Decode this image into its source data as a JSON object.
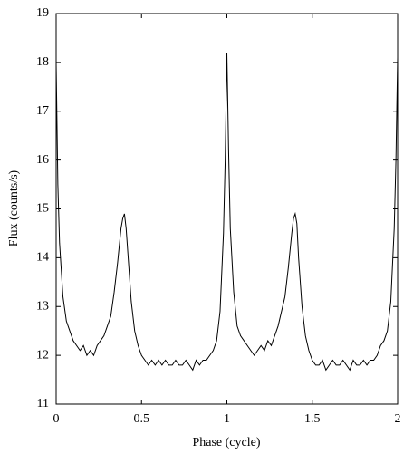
{
  "chart_data": {
    "type": "line",
    "xlabel": "Phase (cycle)",
    "ylabel": "Flux (counts/s)",
    "color": "#000000",
    "x": [
      0,
      0.01,
      0.02,
      0.04,
      0.06,
      0.08,
      0.1,
      0.12,
      0.14,
      0.16,
      0.18,
      0.2,
      0.22,
      0.24,
      0.26,
      0.28,
      0.3,
      0.32,
      0.34,
      0.36,
      0.38,
      0.39,
      0.4,
      0.41,
      0.42,
      0.44,
      0.46,
      0.48,
      0.5,
      0.52,
      0.54,
      0.56,
      0.58,
      0.6,
      0.62,
      0.64,
      0.66,
      0.68,
      0.7,
      0.72,
      0.74,
      0.76,
      0.78,
      0.8,
      0.82,
      0.84,
      0.86,
      0.88,
      0.9,
      0.92,
      0.94,
      0.96,
      0.98,
      0.99,
      1,
      1.01,
      1.02,
      1.04,
      1.06,
      1.08,
      1.1,
      1.12,
      1.14,
      1.16,
      1.18,
      1.2,
      1.22,
      1.24,
      1.26,
      1.28,
      1.3,
      1.32,
      1.34,
      1.36,
      1.38,
      1.39,
      1.4,
      1.41,
      1.42,
      1.44,
      1.46,
      1.48,
      1.5,
      1.52,
      1.54,
      1.56,
      1.58,
      1.6,
      1.62,
      1.64,
      1.66,
      1.68,
      1.7,
      1.72,
      1.74,
      1.76,
      1.78,
      1.8,
      1.82,
      1.84,
      1.86,
      1.88,
      1.9,
      1.92,
      1.94,
      1.96,
      1.98,
      1.99,
      2
    ],
    "values": [
      18.0,
      15.5,
      14.3,
      13.2,
      12.7,
      12.5,
      12.3,
      12.2,
      12.1,
      12.2,
      12.0,
      12.1,
      12.0,
      12.2,
      12.3,
      12.4,
      12.6,
      12.8,
      13.3,
      13.9,
      14.6,
      14.8,
      14.9,
      14.6,
      14.1,
      13.1,
      12.5,
      12.2,
      12.0,
      11.9,
      11.8,
      11.9,
      11.8,
      11.9,
      11.8,
      11.9,
      11.8,
      11.8,
      11.9,
      11.8,
      11.8,
      11.9,
      11.8,
      11.7,
      11.9,
      11.8,
      11.9,
      11.9,
      12.0,
      12.1,
      12.3,
      12.9,
      14.5,
      16.0,
      18.2,
      16.2,
      14.6,
      13.3,
      12.6,
      12.4,
      12.3,
      12.2,
      12.1,
      12.0,
      12.1,
      12.2,
      12.1,
      12.3,
      12.2,
      12.4,
      12.6,
      12.9,
      13.2,
      13.8,
      14.5,
      14.8,
      14.9,
      14.7,
      14.0,
      13.0,
      12.4,
      12.1,
      11.9,
      11.8,
      11.8,
      11.9,
      11.7,
      11.8,
      11.9,
      11.8,
      11.8,
      11.9,
      11.8,
      11.7,
      11.9,
      11.8,
      11.8,
      11.9,
      11.8,
      11.9,
      11.9,
      12.0,
      12.2,
      12.3,
      12.5,
      13.1,
      14.6,
      16.0,
      18.1
    ],
    "xlim": [
      0,
      2
    ],
    "xticks": [
      0,
      0.5,
      1,
      1.5,
      2
    ],
    "ylim": [
      11,
      19
    ],
    "yticks": [
      11,
      12,
      13,
      14,
      15,
      16,
      17,
      18,
      19
    ]
  }
}
